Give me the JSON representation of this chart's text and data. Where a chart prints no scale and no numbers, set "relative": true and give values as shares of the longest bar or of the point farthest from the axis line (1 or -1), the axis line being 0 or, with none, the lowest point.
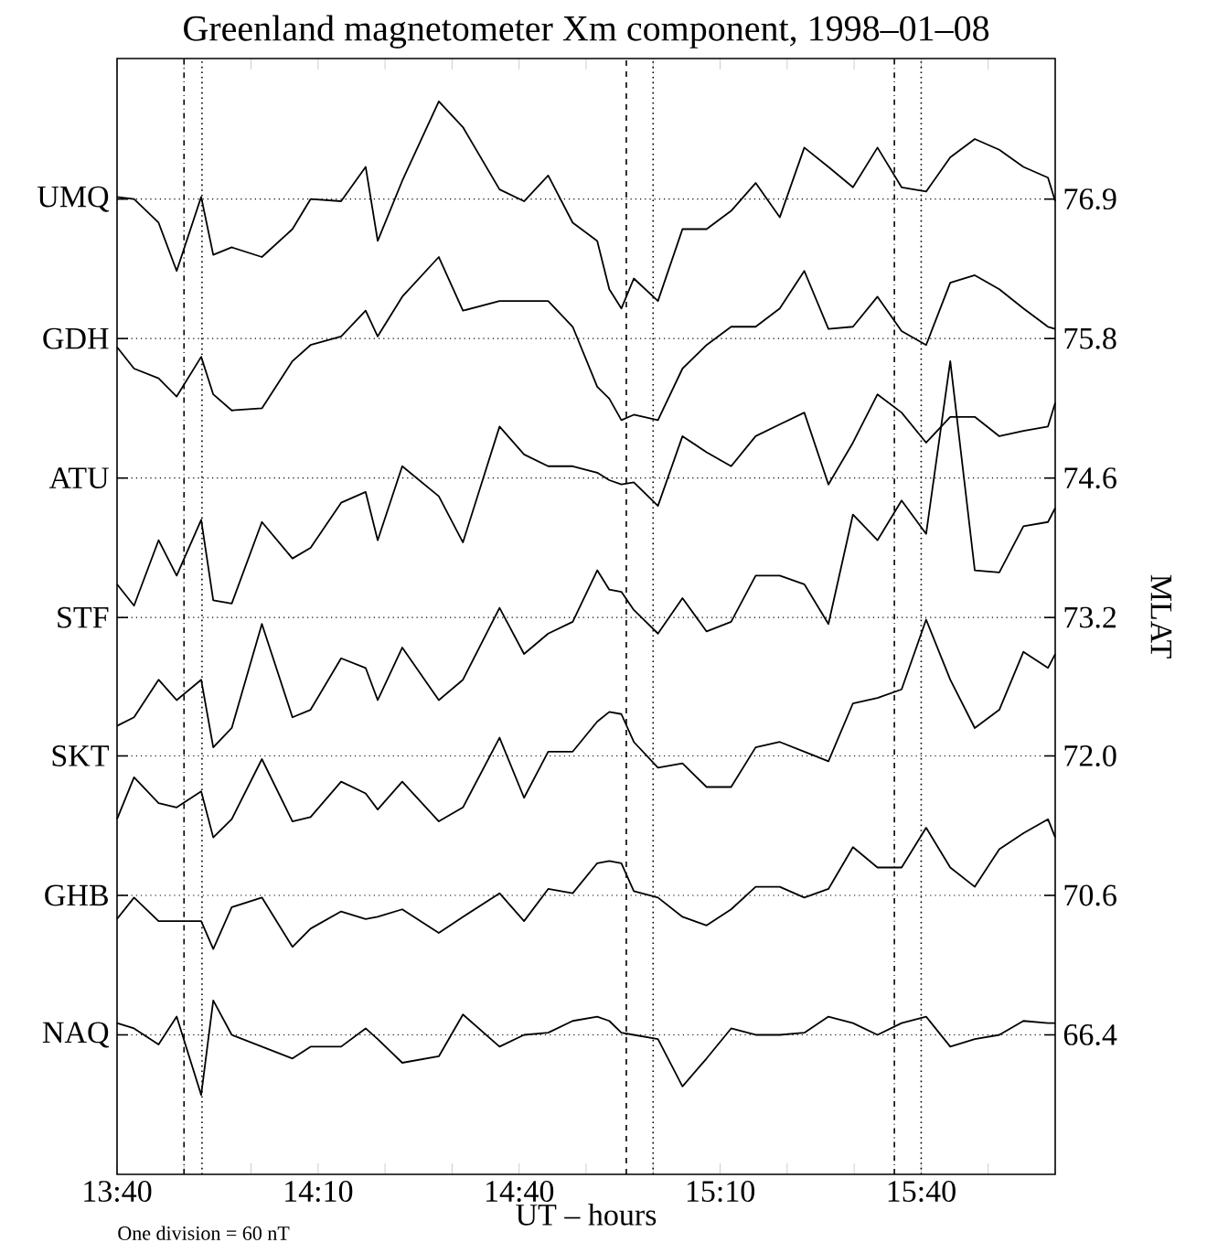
{
  "chart_data": {
    "type": "line",
    "relative": true,
    "title": "Greenland magnetometer Xm component, 1998–01–08",
    "xlabel": "UT – hours",
    "y2label": "MLAT",
    "legend": "left",
    "annotations": [
      "One division = 60 nT",
      "76.9",
      "75.8",
      "74.6",
      "73.2",
      "72.0",
      "70.6",
      "66.4"
    ],
    "x": [
      13.6667,
      13.709,
      13.77,
      13.815,
      13.876,
      13.906,
      13.952,
      14.027,
      14.103,
      14.148,
      14.224,
      14.285,
      14.315,
      14.376,
      14.467,
      14.527,
      14.618,
      14.679,
      14.739,
      14.8,
      14.861,
      14.891,
      14.921,
      14.952,
      15.012,
      15.073,
      15.133,
      15.194,
      15.255,
      15.315,
      15.376,
      15.436,
      15.497,
      15.558,
      15.618,
      15.679,
      15.739,
      15.8,
      15.861,
      15.921,
      15.982,
      16.0
    ],
    "series": [
      {
        "name": "UMQ",
        "color": "#000000",
        "values": [
          0.911,
          0.909,
          0.887,
          0.842,
          0.911,
          0.857,
          0.864,
          0.855,
          0.881,
          0.909,
          0.907,
          0.939,
          0.87,
          0.926,
          1,
          0.976,
          0.918,
          0.907,
          0.931,
          0.887,
          0.87,
          0.825,
          0.807,
          0.835,
          0.814,
          0.881,
          0.881,
          0.898,
          0.924,
          0.892,
          0.957,
          0.939,
          0.92,
          0.957,
          0.92,
          0.916,
          0.948,
          0.965,
          0.955,
          0.939,
          0.929,
          0.907
        ]
      },
      {
        "name": "GDH",
        "color": "#000000",
        "values": [
          0.771,
          0.751,
          0.742,
          0.725,
          0.762,
          0.727,
          0.712,
          0.714,
          0.758,
          0.773,
          0.781,
          0.805,
          0.781,
          0.818,
          0.855,
          0.805,
          0.814,
          0.814,
          0.814,
          0.79,
          0.734,
          0.723,
          0.703,
          0.708,
          0.703,
          0.751,
          0.773,
          0.79,
          0.79,
          0.807,
          0.842,
          0.788,
          0.79,
          0.818,
          0.786,
          0.773,
          0.831,
          0.838,
          0.825,
          0.807,
          0.79,
          0.788
        ]
      },
      {
        "name": "ATU",
        "color": "#000000",
        "values": [
          0.55,
          0.53,
          0.591,
          0.558,
          0.61,
          0.535,
          0.532,
          0.608,
          0.574,
          0.584,
          0.626,
          0.636,
          0.591,
          0.66,
          0.632,
          0.589,
          0.697,
          0.671,
          0.66,
          0.66,
          0.654,
          0.647,
          0.643,
          0.645,
          0.623,
          0.688,
          0.673,
          0.66,
          0.688,
          0.699,
          0.71,
          0.643,
          0.682,
          0.727,
          0.71,
          0.682,
          0.706,
          0.706,
          0.688,
          0.693,
          0.697,
          0.719
        ]
      },
      {
        "name": "STF",
        "color": "#000000",
        "values": [
          0.418,
          0.426,
          0.461,
          0.442,
          0.461,
          0.398,
          0.416,
          0.513,
          0.426,
          0.433,
          0.481,
          0.472,
          0.442,
          0.491,
          0.442,
          0.461,
          0.528,
          0.485,
          0.504,
          0.515,
          0.563,
          0.545,
          0.543,
          0.526,
          0.504,
          0.537,
          0.506,
          0.515,
          0.558,
          0.558,
          0.55,
          0.513,
          0.615,
          0.591,
          0.628,
          0.597,
          0.758,
          0.563,
          0.561,
          0.604,
          0.608,
          0.621
        ]
      },
      {
        "name": "SKT",
        "color": "#000000",
        "values": [
          0.331,
          0.37,
          0.346,
          0.342,
          0.357,
          0.314,
          0.331,
          0.387,
          0.329,
          0.333,
          0.366,
          0.355,
          0.34,
          0.366,
          0.329,
          0.342,
          0.407,
          0.351,
          0.394,
          0.394,
          0.422,
          0.431,
          0.429,
          0.403,
          0.379,
          0.383,
          0.361,
          0.361,
          0.398,
          0.403,
          0.394,
          0.385,
          0.439,
          0.444,
          0.452,
          0.517,
          0.461,
          0.416,
          0.433,
          0.487,
          0.472,
          0.485
        ]
      },
      {
        "name": "GHB",
        "color": "#000000",
        "values": [
          0.238,
          0.258,
          0.236,
          0.236,
          0.236,
          0.21,
          0.249,
          0.258,
          0.212,
          0.229,
          0.245,
          0.238,
          0.24,
          0.247,
          0.225,
          0.24,
          0.262,
          0.236,
          0.266,
          0.262,
          0.29,
          0.292,
          0.29,
          0.264,
          0.258,
          0.24,
          0.232,
          0.247,
          0.268,
          0.268,
          0.258,
          0.266,
          0.305,
          0.286,
          0.286,
          0.323,
          0.286,
          0.268,
          0.303,
          0.318,
          0.331,
          0.314
        ]
      },
      {
        "name": "NAQ",
        "color": "#000000",
        "values": [
          0.141,
          0.136,
          0.121,
          0.147,
          0.074,
          0.162,
          0.13,
          0.119,
          0.108,
          0.119,
          0.119,
          0.136,
          0.126,
          0.104,
          0.11,
          0.149,
          0.119,
          0.13,
          0.132,
          0.143,
          0.147,
          0.143,
          0.132,
          0.13,
          0.126,
          0.082,
          0.108,
          0.136,
          0.13,
          0.13,
          0.132,
          0.147,
          0.141,
          0.13,
          0.141,
          0.147,
          0.119,
          0.126,
          0.13,
          0.143,
          0.141,
          0.141
        ]
      }
    ],
    "xlim": [
      13.6667,
      16.0
    ],
    "xticks": [
      {
        "value": 13.6667,
        "label": "13:40"
      },
      {
        "value": 13.8333,
        "label": null
      },
      {
        "value": 14.0,
        "label": null
      },
      {
        "value": 14.1667,
        "label": "14:10"
      },
      {
        "value": 14.3333,
        "label": null
      },
      {
        "value": 14.5,
        "label": null
      },
      {
        "value": 14.6667,
        "label": "14:40"
      },
      {
        "value": 14.8333,
        "label": null
      },
      {
        "value": 15.0,
        "label": null
      },
      {
        "value": 15.1667,
        "label": "15:10"
      },
      {
        "value": 15.3333,
        "label": null
      },
      {
        "value": 15.5,
        "label": null
      },
      {
        "value": 15.6667,
        "label": "15:40"
      },
      {
        "value": 15.8333,
        "label": null
      }
    ],
    "ref_lines": [
      {
        "axis": "y",
        "value": 0.909,
        "line_style": "dotted"
      },
      {
        "axis": "y",
        "value": 0.779,
        "line_style": "dotted"
      },
      {
        "axis": "y",
        "value": 0.649,
        "line_style": "dotted"
      },
      {
        "axis": "y",
        "value": 0.519,
        "line_style": "dotted"
      },
      {
        "axis": "y",
        "value": 0.39,
        "line_style": "dotted"
      },
      {
        "axis": "y",
        "value": 0.26,
        "line_style": "dotted"
      },
      {
        "axis": "y",
        "value": 0.13,
        "line_style": "dotted"
      },
      {
        "axis": "x",
        "value": 13.8333,
        "line_style": "dashdot"
      },
      {
        "axis": "x",
        "value": 13.878,
        "line_style": "dotted"
      },
      {
        "axis": "x",
        "value": 14.9333,
        "line_style": "dashed"
      },
      {
        "axis": "x",
        "value": 15.0,
        "line_style": "dotted"
      },
      {
        "axis": "x",
        "value": 15.6,
        "line_style": "dashdot"
      },
      {
        "axis": "x",
        "value": 15.6667,
        "line_style": "dotted"
      }
    ]
  }
}
